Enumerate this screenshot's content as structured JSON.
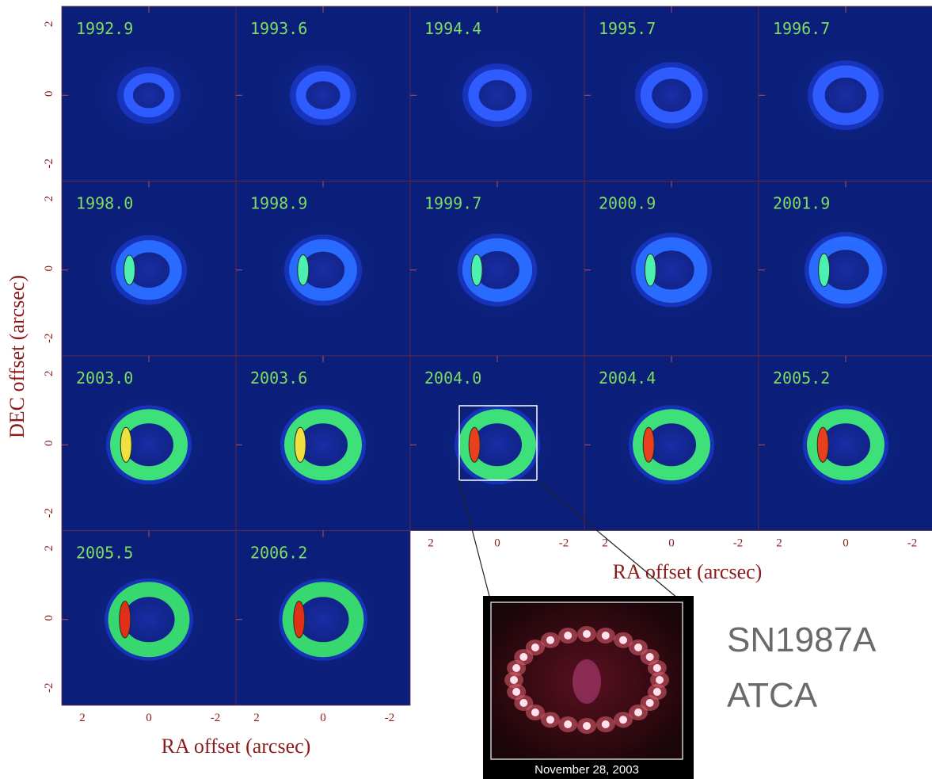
{
  "panels": [
    {
      "epoch": "1992.9"
    },
    {
      "epoch": "1993.6"
    },
    {
      "epoch": "1994.4"
    },
    {
      "epoch": "1995.7"
    },
    {
      "epoch": "1996.7"
    },
    {
      "epoch": "1998.0"
    },
    {
      "epoch": "1998.9"
    },
    {
      "epoch": "1999.7"
    },
    {
      "epoch": "2000.9"
    },
    {
      "epoch": "2001.9"
    },
    {
      "epoch": "2003.0"
    },
    {
      "epoch": "2003.6"
    },
    {
      "epoch": "2004.0"
    },
    {
      "epoch": "2004.4"
    },
    {
      "epoch": "2005.2"
    },
    {
      "epoch": "2005.5"
    },
    {
      "epoch": "2006.2"
    }
  ],
  "y_ticks": [
    "2",
    "0",
    "-2"
  ],
  "x_ticks": [
    "2",
    "0",
    "-2"
  ],
  "y_axis_label": "DEC offset (arcsec)",
  "x_axis_label": "RA offset (arcsec)",
  "inset_caption": "November 28, 2003",
  "side_text": [
    "SN1987A",
    "ATCA"
  ]
}
